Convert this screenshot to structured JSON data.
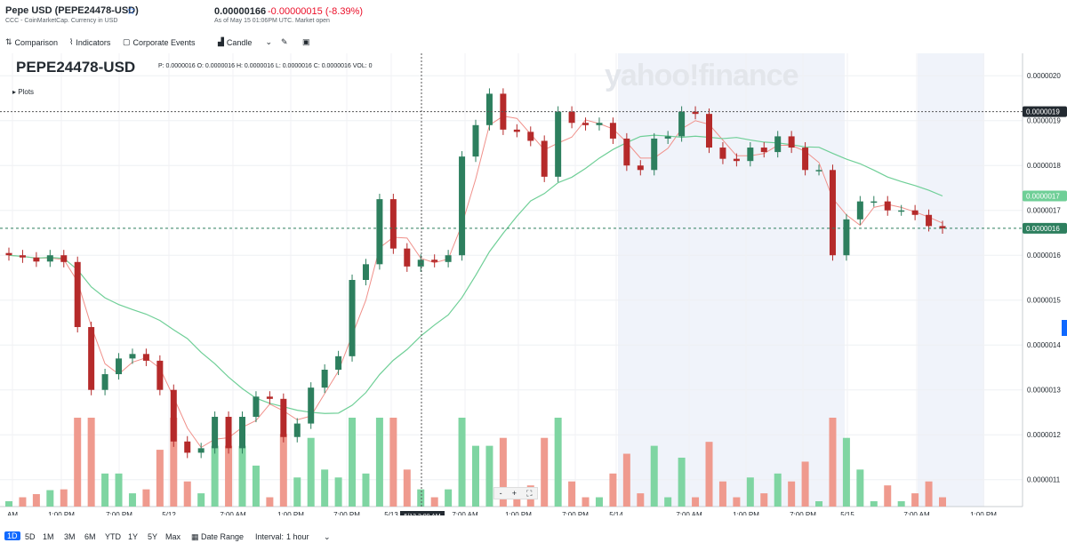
{
  "header": {
    "title": "Pepe USD (PEPE24478-USD)",
    "subtitle": "CCC - CoinMarketCap. Currency in USD",
    "price": "0.00000166",
    "change": "-0.00000015",
    "change_pct": "(-8.39%)",
    "as_of": "As of May 15 01:06PM UTC. Market open"
  },
  "toolbar": {
    "comparison": "Comparison",
    "indicators": "Indicators",
    "corporate_events": "Corporate Events",
    "chart_type": "Candle"
  },
  "chart_header": {
    "symbol": "PEPE24478-USD",
    "ohlc": "P: 0.0000016 O: 0.0000016 H: 0.0000016 L: 0.0000016 C: 0.0000016 VOL: 0",
    "plots": "Plots",
    "watermark": "yahoo!finance"
  },
  "zoom": {
    "minus": "-",
    "plus": "+",
    "fit": "⛶"
  },
  "crosshair_label": "5/13 3:00 AM",
  "colors": {
    "up": "#2d7f5e",
    "down": "#b52a2a",
    "vol_up": "#7fd5a2",
    "vol_down": "#ef9a8e",
    "sma_fast": "#f0908a",
    "sma_slow": "#6fcf97",
    "accent": "#0f69ff"
  },
  "y_ticks": [
    "0.0000020",
    "0.0000019",
    "0.0000018",
    "0.0000017",
    "0.0000016",
    "0.0000015",
    "0.0000014",
    "0.0000013",
    "0.0000012",
    "0.0000011"
  ],
  "y_markers": {
    "crosshair": "0.0000019",
    "sma_slow": "0.0000017",
    "last": "0.0000016"
  },
  "x_ticks": [
    "AM",
    "1:00 PM",
    "7:00 PM",
    "5/12",
    "7:00 AM",
    "1:00 PM",
    "7:00 PM",
    "5/13",
    "7:00 AM",
    "1:00 PM",
    "7:00 PM",
    "5/14",
    "7:00 AM",
    "1:00 PM",
    "7:00 PM",
    "5/15",
    "7:00 AM",
    "1:00 PM"
  ],
  "chart_data": {
    "type": "candlestick",
    "x_labels": [
      "AM",
      "1:00 PM",
      "7:00 PM",
      "5/12",
      "7:00 AM",
      "1:00 PM",
      "7:00 PM",
      "5/13",
      "7:00 AM",
      "1:00 PM",
      "7:00 PM",
      "5/14",
      "7:00 AM",
      "1:00 PM",
      "7:00 PM",
      "5/15",
      "7:00 AM",
      "1:00 PM"
    ],
    "y_unit": "USD",
    "ylim": [
      1.04e-06,
      2.05e-06
    ],
    "candles_close": [
      1.6e-06,
      1.595e-06,
      1.586e-06,
      1.6e-06,
      1.585e-06,
      1.44e-06,
      1.3e-06,
      1.335e-06,
      1.37e-06,
      1.38e-06,
      1.365e-06,
      1.3e-06,
      1.185e-06,
      1.16e-06,
      1.17e-06,
      1.24e-06,
      1.17e-06,
      1.24e-06,
      1.285e-06,
      1.28e-06,
      1.195e-06,
      1.225e-06,
      1.305e-06,
      1.345e-06,
      1.375e-06,
      1.545e-06,
      1.58e-06,
      1.725e-06,
      1.615e-06,
      1.575e-06,
      1.59e-06,
      1.585e-06,
      1.6e-06,
      1.82e-06,
      1.89e-06,
      1.96e-06,
      1.88e-06,
      1.875e-06,
      1.855e-06,
      1.775e-06,
      1.92e-06,
      1.895e-06,
      1.89e-06,
      1.895e-06,
      1.86e-06,
      1.8e-06,
      1.79e-06,
      1.86e-06,
      1.865e-06,
      1.92e-06,
      1.915e-06,
      1.84e-06,
      1.815e-06,
      1.81e-06,
      1.84e-06,
      1.83e-06,
      1.865e-06,
      1.84e-06,
      1.79e-06,
      1.79e-06,
      1.6e-06,
      1.68e-06,
      1.72e-06,
      1.72e-06,
      1.7e-06,
      1.7e-06,
      1.69e-06,
      1.665e-06,
      1.66e-06
    ],
    "series": [
      {
        "name": "SMA (fast)"
      },
      {
        "name": "SMA (slow)"
      }
    ]
  },
  "range_buttons": [
    "1D",
    "5D",
    "1M",
    "3M",
    "6M",
    "YTD",
    "1Y",
    "5Y",
    "Max"
  ],
  "bottom": {
    "date_range": "Date Range",
    "interval_label": "Interval:",
    "interval_value": "1 hour"
  }
}
